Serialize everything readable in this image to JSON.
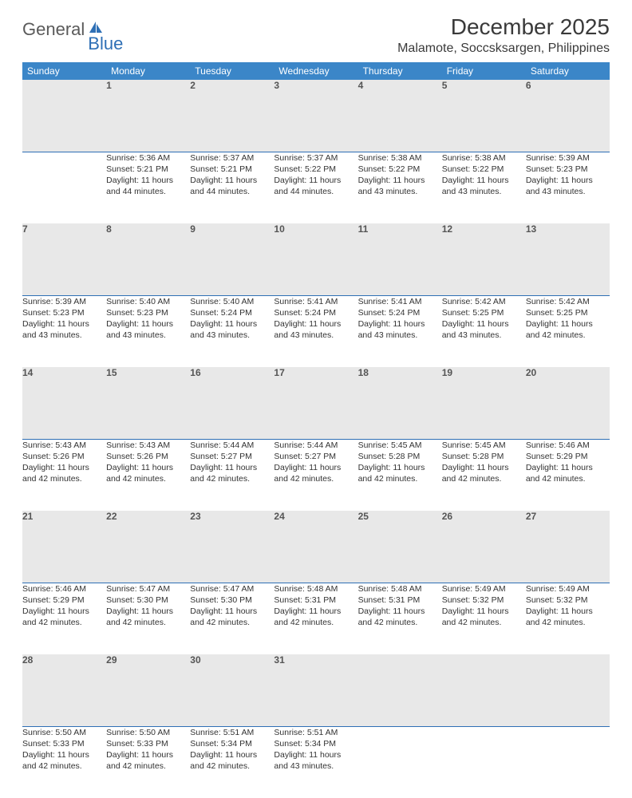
{
  "brand": {
    "part1": "General",
    "part2": "Blue"
  },
  "title": "December 2025",
  "location": "Malamote, Soccsksargen, Philippines",
  "day_headers": [
    "Sunday",
    "Monday",
    "Tuesday",
    "Wednesday",
    "Thursday",
    "Friday",
    "Saturday"
  ],
  "colors": {
    "header_bg": "#3b86c8",
    "header_text": "#ffffff",
    "daynum_bg": "#e8e8e8",
    "daynum_border": "#2e6fb5",
    "brand_gray": "#5a5a5a",
    "brand_blue": "#2e6fb5"
  },
  "weeks": [
    {
      "nums": [
        "",
        "1",
        "2",
        "3",
        "4",
        "5",
        "6"
      ],
      "cells": [
        null,
        {
          "sunrise": "Sunrise: 5:36 AM",
          "sunset": "Sunset: 5:21 PM",
          "d1": "Daylight: 11 hours",
          "d2": "and 44 minutes."
        },
        {
          "sunrise": "Sunrise: 5:37 AM",
          "sunset": "Sunset: 5:21 PM",
          "d1": "Daylight: 11 hours",
          "d2": "and 44 minutes."
        },
        {
          "sunrise": "Sunrise: 5:37 AM",
          "sunset": "Sunset: 5:22 PM",
          "d1": "Daylight: 11 hours",
          "d2": "and 44 minutes."
        },
        {
          "sunrise": "Sunrise: 5:38 AM",
          "sunset": "Sunset: 5:22 PM",
          "d1": "Daylight: 11 hours",
          "d2": "and 43 minutes."
        },
        {
          "sunrise": "Sunrise: 5:38 AM",
          "sunset": "Sunset: 5:22 PM",
          "d1": "Daylight: 11 hours",
          "d2": "and 43 minutes."
        },
        {
          "sunrise": "Sunrise: 5:39 AM",
          "sunset": "Sunset: 5:23 PM",
          "d1": "Daylight: 11 hours",
          "d2": "and 43 minutes."
        }
      ]
    },
    {
      "nums": [
        "7",
        "8",
        "9",
        "10",
        "11",
        "12",
        "13"
      ],
      "cells": [
        {
          "sunrise": "Sunrise: 5:39 AM",
          "sunset": "Sunset: 5:23 PM",
          "d1": "Daylight: 11 hours",
          "d2": "and 43 minutes."
        },
        {
          "sunrise": "Sunrise: 5:40 AM",
          "sunset": "Sunset: 5:23 PM",
          "d1": "Daylight: 11 hours",
          "d2": "and 43 minutes."
        },
        {
          "sunrise": "Sunrise: 5:40 AM",
          "sunset": "Sunset: 5:24 PM",
          "d1": "Daylight: 11 hours",
          "d2": "and 43 minutes."
        },
        {
          "sunrise": "Sunrise: 5:41 AM",
          "sunset": "Sunset: 5:24 PM",
          "d1": "Daylight: 11 hours",
          "d2": "and 43 minutes."
        },
        {
          "sunrise": "Sunrise: 5:41 AM",
          "sunset": "Sunset: 5:24 PM",
          "d1": "Daylight: 11 hours",
          "d2": "and 43 minutes."
        },
        {
          "sunrise": "Sunrise: 5:42 AM",
          "sunset": "Sunset: 5:25 PM",
          "d1": "Daylight: 11 hours",
          "d2": "and 43 minutes."
        },
        {
          "sunrise": "Sunrise: 5:42 AM",
          "sunset": "Sunset: 5:25 PM",
          "d1": "Daylight: 11 hours",
          "d2": "and 42 minutes."
        }
      ]
    },
    {
      "nums": [
        "14",
        "15",
        "16",
        "17",
        "18",
        "19",
        "20"
      ],
      "cells": [
        {
          "sunrise": "Sunrise: 5:43 AM",
          "sunset": "Sunset: 5:26 PM",
          "d1": "Daylight: 11 hours",
          "d2": "and 42 minutes."
        },
        {
          "sunrise": "Sunrise: 5:43 AM",
          "sunset": "Sunset: 5:26 PM",
          "d1": "Daylight: 11 hours",
          "d2": "and 42 minutes."
        },
        {
          "sunrise": "Sunrise: 5:44 AM",
          "sunset": "Sunset: 5:27 PM",
          "d1": "Daylight: 11 hours",
          "d2": "and 42 minutes."
        },
        {
          "sunrise": "Sunrise: 5:44 AM",
          "sunset": "Sunset: 5:27 PM",
          "d1": "Daylight: 11 hours",
          "d2": "and 42 minutes."
        },
        {
          "sunrise": "Sunrise: 5:45 AM",
          "sunset": "Sunset: 5:28 PM",
          "d1": "Daylight: 11 hours",
          "d2": "and 42 minutes."
        },
        {
          "sunrise": "Sunrise: 5:45 AM",
          "sunset": "Sunset: 5:28 PM",
          "d1": "Daylight: 11 hours",
          "d2": "and 42 minutes."
        },
        {
          "sunrise": "Sunrise: 5:46 AM",
          "sunset": "Sunset: 5:29 PM",
          "d1": "Daylight: 11 hours",
          "d2": "and 42 minutes."
        }
      ]
    },
    {
      "nums": [
        "21",
        "22",
        "23",
        "24",
        "25",
        "26",
        "27"
      ],
      "cells": [
        {
          "sunrise": "Sunrise: 5:46 AM",
          "sunset": "Sunset: 5:29 PM",
          "d1": "Daylight: 11 hours",
          "d2": "and 42 minutes."
        },
        {
          "sunrise": "Sunrise: 5:47 AM",
          "sunset": "Sunset: 5:30 PM",
          "d1": "Daylight: 11 hours",
          "d2": "and 42 minutes."
        },
        {
          "sunrise": "Sunrise: 5:47 AM",
          "sunset": "Sunset: 5:30 PM",
          "d1": "Daylight: 11 hours",
          "d2": "and 42 minutes."
        },
        {
          "sunrise": "Sunrise: 5:48 AM",
          "sunset": "Sunset: 5:31 PM",
          "d1": "Daylight: 11 hours",
          "d2": "and 42 minutes."
        },
        {
          "sunrise": "Sunrise: 5:48 AM",
          "sunset": "Sunset: 5:31 PM",
          "d1": "Daylight: 11 hours",
          "d2": "and 42 minutes."
        },
        {
          "sunrise": "Sunrise: 5:49 AM",
          "sunset": "Sunset: 5:32 PM",
          "d1": "Daylight: 11 hours",
          "d2": "and 42 minutes."
        },
        {
          "sunrise": "Sunrise: 5:49 AM",
          "sunset": "Sunset: 5:32 PM",
          "d1": "Daylight: 11 hours",
          "d2": "and 42 minutes."
        }
      ]
    },
    {
      "nums": [
        "28",
        "29",
        "30",
        "31",
        "",
        "",
        ""
      ],
      "cells": [
        {
          "sunrise": "Sunrise: 5:50 AM",
          "sunset": "Sunset: 5:33 PM",
          "d1": "Daylight: 11 hours",
          "d2": "and 42 minutes."
        },
        {
          "sunrise": "Sunrise: 5:50 AM",
          "sunset": "Sunset: 5:33 PM",
          "d1": "Daylight: 11 hours",
          "d2": "and 42 minutes."
        },
        {
          "sunrise": "Sunrise: 5:51 AM",
          "sunset": "Sunset: 5:34 PM",
          "d1": "Daylight: 11 hours",
          "d2": "and 42 minutes."
        },
        {
          "sunrise": "Sunrise: 5:51 AM",
          "sunset": "Sunset: 5:34 PM",
          "d1": "Daylight: 11 hours",
          "d2": "and 43 minutes."
        },
        null,
        null,
        null
      ]
    }
  ]
}
